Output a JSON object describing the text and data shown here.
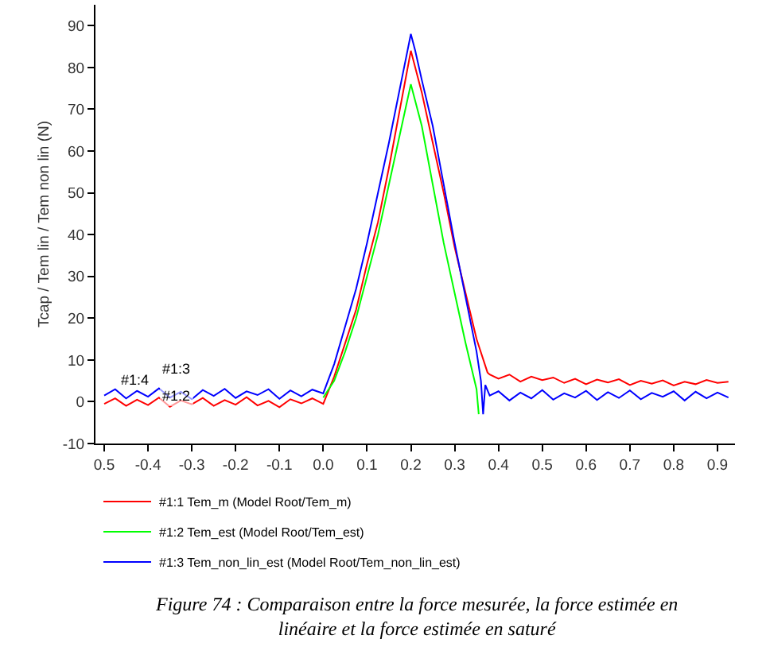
{
  "chart_data": {
    "type": "line",
    "ylabel": "Tcap / Tem lin / Tem non lin (N)",
    "xlim": [
      -0.52,
      0.94
    ],
    "ylim": [
      -10,
      95
    ],
    "xticks": [
      {
        "value": -0.5,
        "label": "0.5"
      },
      -0.4,
      -0.3,
      -0.2,
      -0.1,
      {
        "value": 0,
        "label": "0.0"
      },
      0.1,
      0.2,
      0.3,
      0.4,
      0.5,
      0.6,
      0.7,
      0.8,
      0.9
    ],
    "yticks": [
      -10,
      0,
      10,
      20,
      30,
      40,
      50,
      60,
      70,
      80,
      90
    ],
    "grid": false,
    "legend": "bottom",
    "marker": "none",
    "line_style": "solid",
    "series": [
      {
        "name": "#1:1 Tem_m (Model Root/Tem_m)",
        "color": "#ff0000",
        "x": [
          -0.5,
          -0.475,
          -0.45,
          -0.425,
          -0.4,
          -0.375,
          -0.35,
          -0.325,
          -0.3,
          -0.275,
          -0.25,
          -0.225,
          -0.2,
          -0.175,
          -0.15,
          -0.125,
          -0.1,
          -0.075,
          -0.05,
          -0.025,
          0,
          0.025,
          0.05,
          0.075,
          0.1,
          0.125,
          0.15,
          0.175,
          0.2,
          0.225,
          0.25,
          0.275,
          0.3,
          0.325,
          0.35,
          0.375,
          0.38,
          0.4,
          0.425,
          0.45,
          0.475,
          0.5,
          0.525,
          0.55,
          0.575,
          0.6,
          0.625,
          0.65,
          0.675,
          0.7,
          0.725,
          0.75,
          0.775,
          0.8,
          0.825,
          0.85,
          0.875,
          0.9,
          0.925
        ],
        "values": [
          -0.5,
          0.8,
          -1,
          0.5,
          -0.8,
          1,
          -1.2,
          0.3,
          -0.6,
          0.9,
          -1,
          0.4,
          -0.7,
          1.1,
          -0.9,
          0.2,
          -1.3,
          0.6,
          -0.4,
          0.8,
          -0.5,
          6,
          14,
          22,
          33,
          43,
          56,
          70,
          84,
          74,
          62,
          50,
          37,
          26,
          15,
          7,
          6.5,
          5.5,
          6.5,
          4.8,
          6,
          5.2,
          5.8,
          4.5,
          5.5,
          4.2,
          5.3,
          4.6,
          5.4,
          4,
          5,
          4.3,
          5.1,
          3.9,
          4.8,
          4.2,
          5.2,
          4.5,
          4.8
        ]
      },
      {
        "name": "#1:2 Tem_est (Model Root/Tem_est)",
        "color": "#00ff00",
        "x": [
          0,
          0.025,
          0.05,
          0.075,
          0.1,
          0.125,
          0.15,
          0.175,
          0.2,
          0.225,
          0.25,
          0.275,
          0.3,
          0.325,
          0.35,
          0.355
        ],
        "values": [
          1,
          5,
          12,
          20,
          30,
          40,
          52,
          64,
          76,
          66,
          52,
          38,
          26,
          14,
          3,
          -3
        ]
      },
      {
        "name": "#1:3 Tem_non_lin_est (Model Root/Tem_non_lin_est)",
        "color": "#0000ff",
        "x": [
          -0.5,
          -0.475,
          -0.45,
          -0.425,
          -0.4,
          -0.375,
          -0.35,
          -0.325,
          -0.3,
          -0.275,
          -0.25,
          -0.225,
          -0.2,
          -0.175,
          -0.15,
          -0.125,
          -0.1,
          -0.075,
          -0.05,
          -0.025,
          0,
          0.025,
          0.05,
          0.075,
          0.1,
          0.125,
          0.15,
          0.175,
          0.2,
          0.21,
          0.225,
          0.25,
          0.275,
          0.3,
          0.325,
          0.35,
          0.36,
          0.365,
          0.37,
          0.38,
          0.4,
          0.425,
          0.45,
          0.475,
          0.5,
          0.525,
          0.55,
          0.575,
          0.6,
          0.625,
          0.65,
          0.675,
          0.7,
          0.725,
          0.75,
          0.775,
          0.8,
          0.825,
          0.85,
          0.875,
          0.9,
          0.925
        ],
        "values": [
          1.5,
          3,
          0.8,
          2.6,
          1.2,
          3.2,
          1,
          2.4,
          0.6,
          2.8,
          1.4,
          3.1,
          0.9,
          2.5,
          1.6,
          3,
          0.7,
          2.7,
          1.3,
          2.9,
          2,
          9,
          18,
          27,
          38,
          50,
          62,
          75,
          88,
          84,
          77,
          66,
          52,
          38,
          25,
          12,
          5,
          -3,
          4,
          1.5,
          2.5,
          0.3,
          2.2,
          0.8,
          2.8,
          0.5,
          2,
          1,
          2.6,
          0.4,
          2.3,
          0.9,
          2.7,
          0.6,
          2.1,
          1.2,
          2.5,
          0.3,
          2.4,
          0.8,
          2.2,
          1
        ]
      }
    ],
    "annotations": [
      "#1:3",
      "#1:4",
      "#1:2",
      "Figure 74 : Comparaison entre la force mesurée, la force estimée en linéaire et la force estimée en saturé"
    ]
  }
}
